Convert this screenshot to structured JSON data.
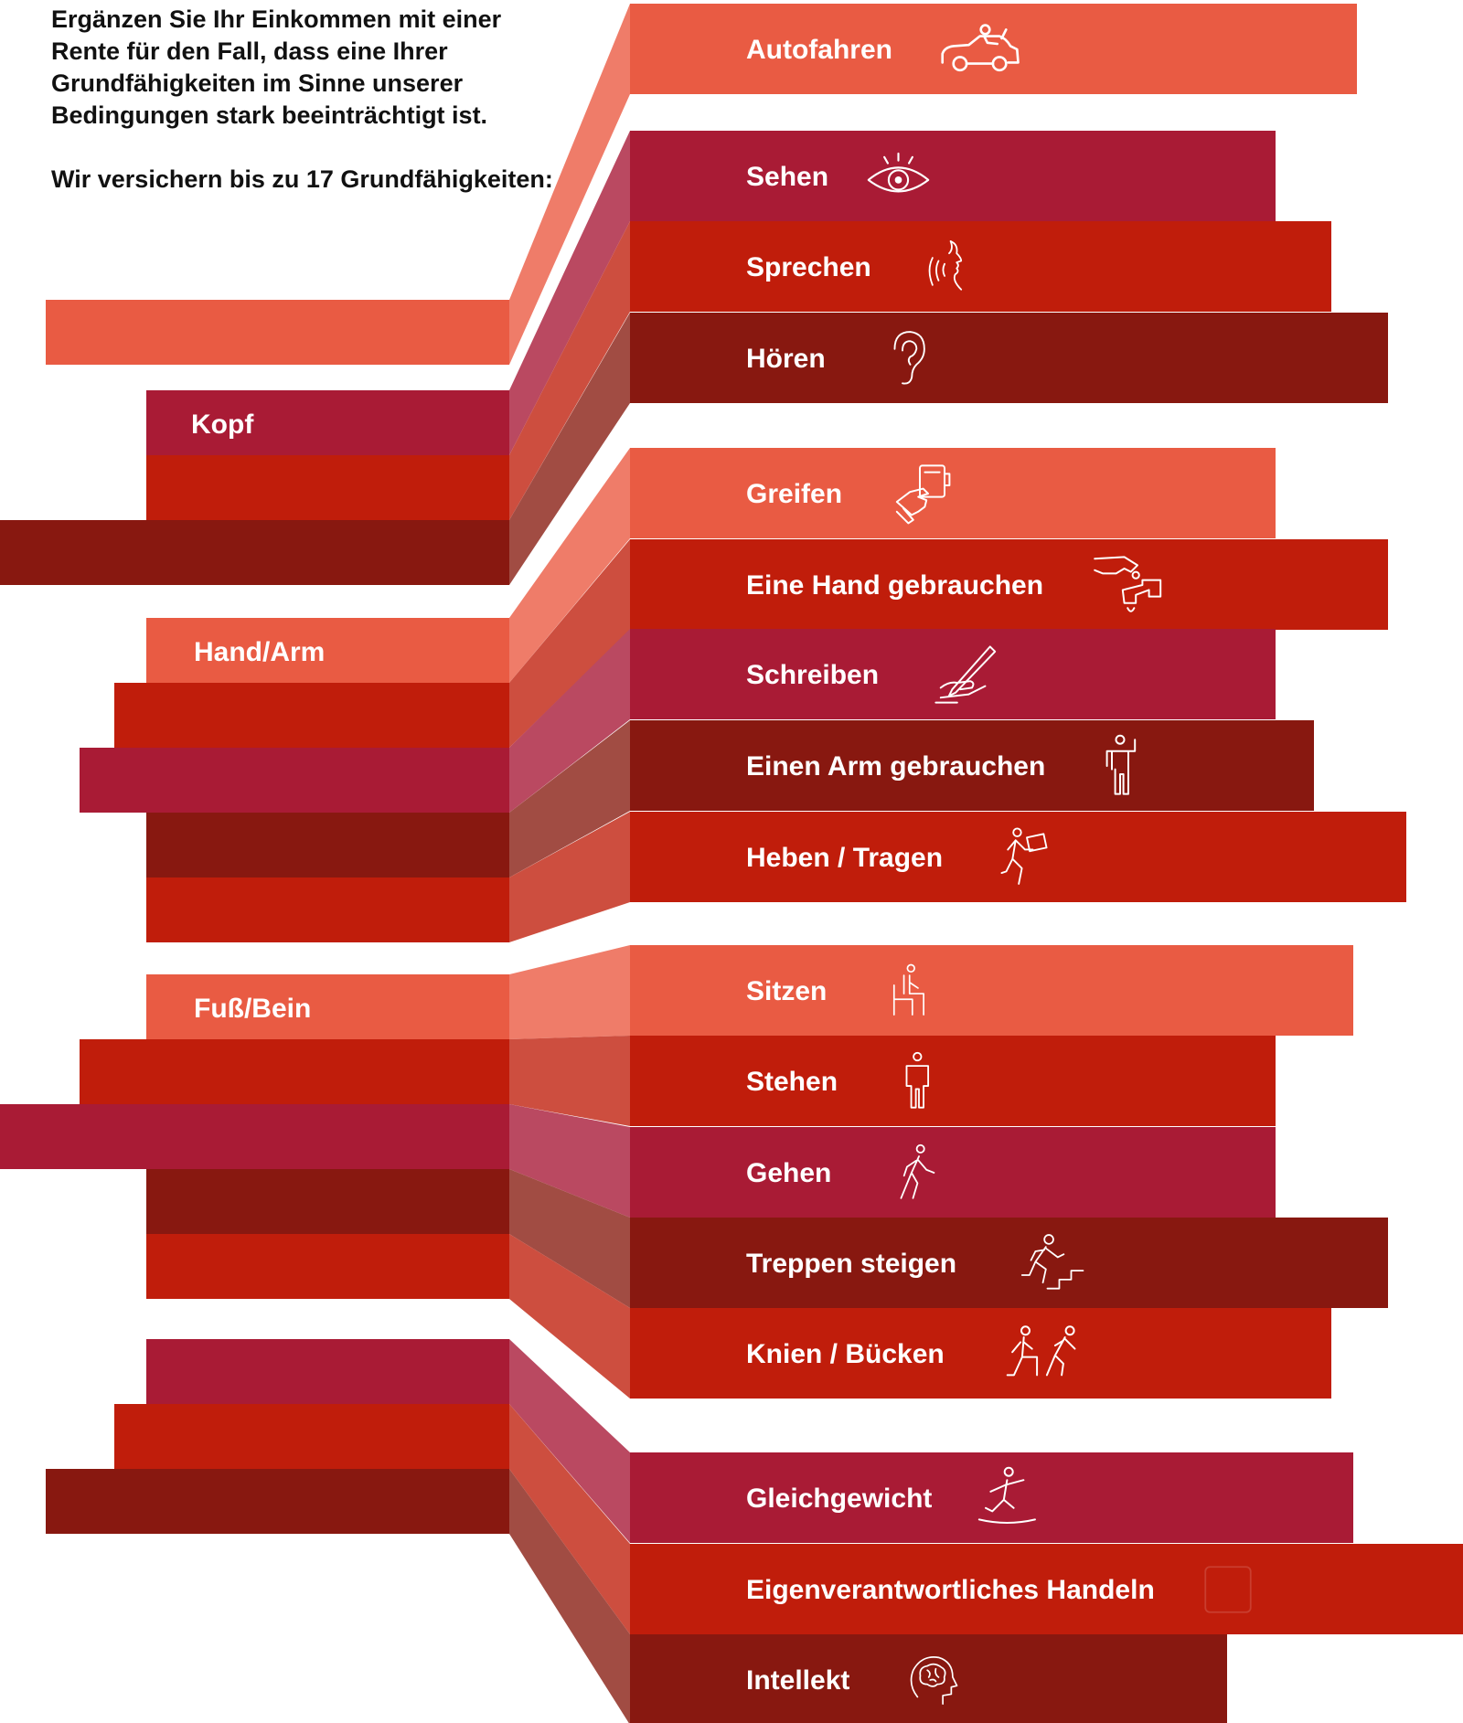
{
  "intro": {
    "paragraph_1": "Ergänzen Sie Ihr Einkommen mit einer Rente für den Fall, dass eine Ihrer Grundfähigkeiten im Sinne unserer Bedingungen stark beeinträchtigt ist.",
    "paragraph_2": "Wir versichern bis zu 17 Grundfähigkeiten:"
  },
  "colors": {
    "coral": "#E95B43",
    "crimson": "#A91B35",
    "red": "#C01D0B",
    "dark_red": "#881810",
    "connector_coral": "#EF7C69",
    "connector_crimson": "#BA4961",
    "connector_red": "#CD4E3F",
    "connector_dark_red": "#A14C43"
  },
  "groups": [
    {
      "label": ""
    },
    {
      "label": "Kopf"
    },
    {
      "label": "Hand/Arm"
    },
    {
      "label": "Fuß/Bein"
    },
    {
      "label": ""
    }
  ],
  "abilities": [
    {
      "label": "Autofahren",
      "icon": "car-icon",
      "color": "coral"
    },
    {
      "label": "Sehen",
      "icon": "eye-icon",
      "color": "crimson"
    },
    {
      "label": "Sprechen",
      "icon": "speaking-head-icon",
      "color": "red"
    },
    {
      "label": "Hören",
      "icon": "ear-icon",
      "color": "dark_red"
    },
    {
      "label": "Greifen",
      "icon": "grabbing-hand-icon",
      "color": "coral"
    },
    {
      "label": "Eine Hand gebrauchen",
      "icon": "hand-faucet-icon",
      "color": "red"
    },
    {
      "label": "Schreiben",
      "icon": "writing-hand-icon",
      "color": "crimson"
    },
    {
      "label": "Einen Arm gebrauchen",
      "icon": "raised-arm-person-icon",
      "color": "dark_red"
    },
    {
      "label": "Heben / Tragen",
      "icon": "carrying-box-person-icon",
      "color": "red"
    },
    {
      "label": "Sitzen",
      "icon": "sitting-person-icon",
      "color": "coral"
    },
    {
      "label": "Stehen",
      "icon": "standing-person-icon",
      "color": "red"
    },
    {
      "label": "Gehen",
      "icon": "walking-person-icon",
      "color": "crimson"
    },
    {
      "label": "Treppen steigen",
      "icon": "climbing-stairs-icon",
      "color": "dark_red"
    },
    {
      "label": "Knien / Bücken",
      "icon": "kneeling-bending-icon",
      "color": "red"
    },
    {
      "label": "Gleichgewicht",
      "icon": "balancing-person-icon",
      "color": "crimson"
    },
    {
      "label": "Eigenverantwortliches Handeln",
      "icon": "self-responsibility-icon",
      "color": "red"
    },
    {
      "label": "Intellekt",
      "icon": "brain-head-icon",
      "color": "dark_red"
    }
  ]
}
